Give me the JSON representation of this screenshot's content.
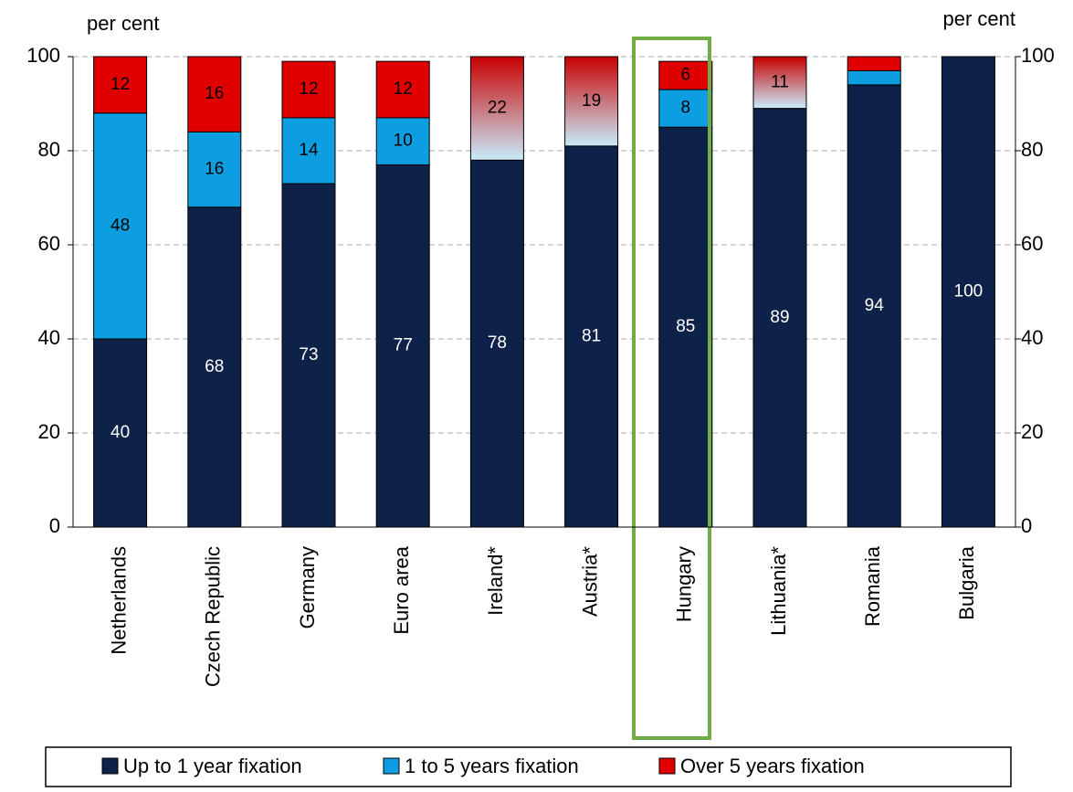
{
  "chart_data": {
    "type": "stacked_bar",
    "y_label": "per cent",
    "y2_label": "per cent",
    "categories": [
      "Netherlands",
      "Czech Republic",
      "Germany",
      "Euro area",
      "Ireland*",
      "Austria*",
      "Hungary",
      "Lithuania*",
      "Romania",
      "Bulgaria"
    ],
    "series": [
      {
        "name": "Up to 1 year fixation",
        "color": "#0e2148",
        "label_color": "#ffffff",
        "values": [
          40,
          68,
          73,
          77,
          78,
          81,
          85,
          89,
          94,
          100
        ]
      },
      {
        "name": "1 to 5 years fixation",
        "color": "#0c9ee0",
        "label_color": "#000000",
        "values": [
          48,
          16,
          14,
          10,
          null,
          null,
          8,
          null,
          3,
          0
        ]
      },
      {
        "name": "Over 5 years fixation",
        "color": "#e00000",
        "label_color": "#000000",
        "values": [
          12,
          16,
          12,
          12,
          null,
          null,
          6,
          null,
          3,
          0
        ]
      },
      {
        "gradient": [
          "#c9ecfb",
          "#c80000"
        ],
        "label_color": "#000000",
        "values": [
          null,
          null,
          null,
          null,
          22,
          19,
          null,
          11,
          null,
          null
        ]
      }
    ],
    "ylim": [
      0,
      100
    ],
    "yticks": [
      0,
      20,
      40,
      60,
      80,
      100
    ],
    "y2lim": [
      0,
      100
    ],
    "y2ticks": [
      0,
      20,
      40,
      60,
      80,
      100
    ],
    "grid": true
  }
}
